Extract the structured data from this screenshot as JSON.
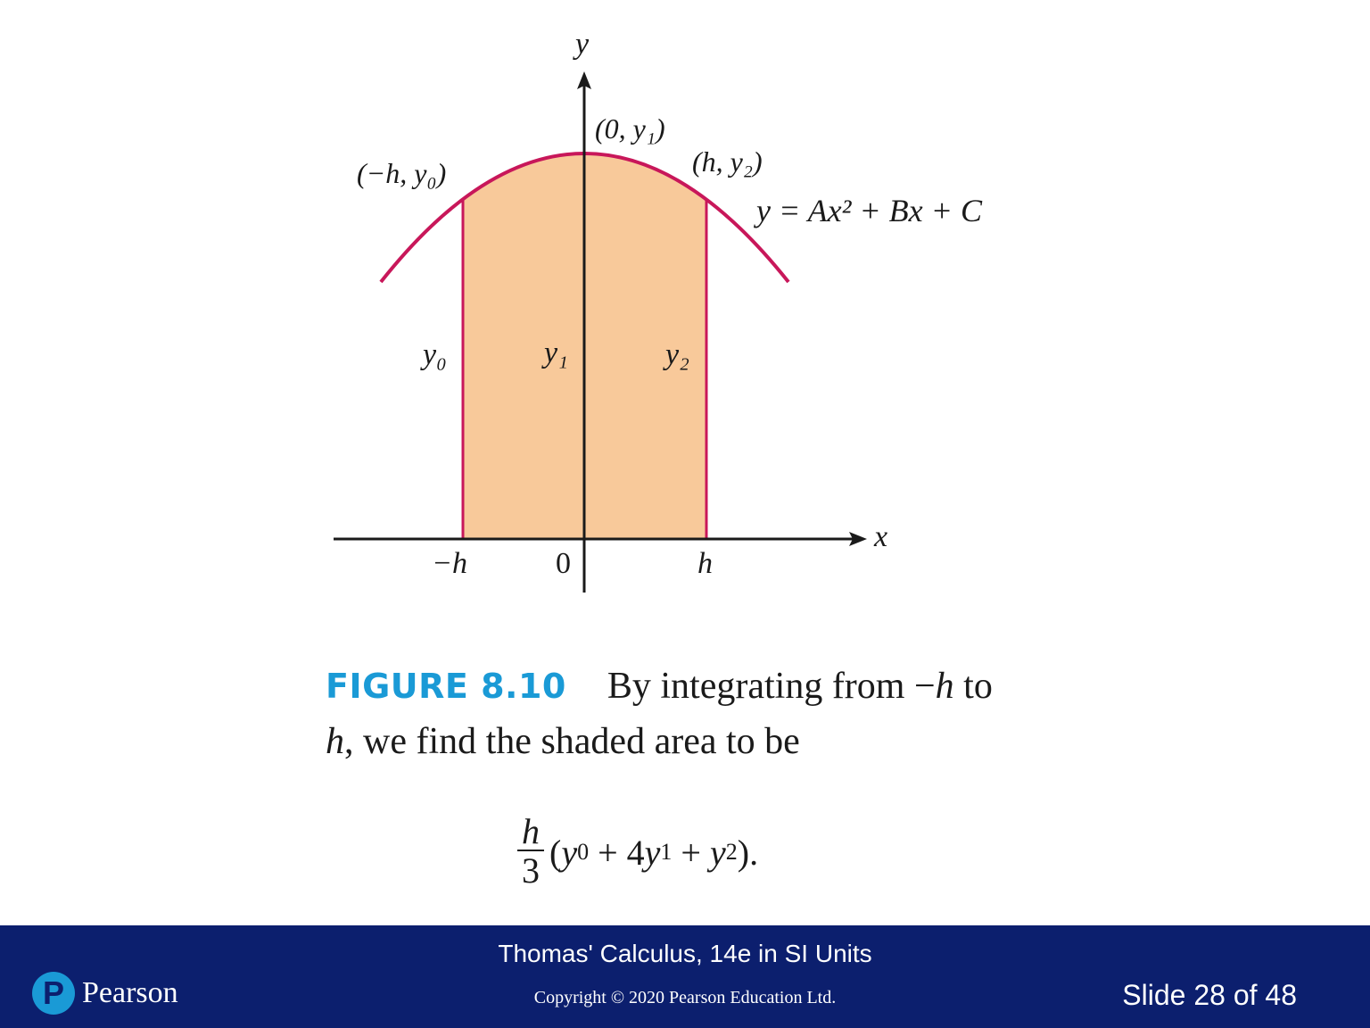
{
  "diagram": {
    "axis_x_label": "x",
    "axis_y_label": "y",
    "curve_equation": "y = Ax² + Bx + C",
    "point_labels": {
      "left": "(−h, y₀)",
      "top": "(0, y₁)",
      "right": "(h, y₂)"
    },
    "ordinate_labels": [
      "y₀",
      "y₁",
      "y₂"
    ],
    "tick_labels": [
      "−h",
      "0",
      "h"
    ],
    "colors": {
      "curve": "#c8175a",
      "shaded_area": "#f8c99a",
      "axes": "#1a1a1a"
    }
  },
  "caption": {
    "figure_label": "FIGURE 8.10",
    "text_part1": "By integrating from −",
    "text_h1": "h",
    "text_part2": " to ",
    "text_h2": "h",
    "text_part3": ", we find the shaded area to be"
  },
  "formula": {
    "numerator": "h",
    "denominator": "3",
    "expression_open": "(",
    "y0": "y",
    "y0_sub": "0",
    "plus1": " + 4",
    "y1": "y",
    "y1_sub": "1",
    "plus2": " + ",
    "y2": "y",
    "y2_sub": "2",
    "expression_close": ")."
  },
  "footer": {
    "book_title": "Thomas' Calculus, 14e in SI Units",
    "copyright": "Copyright © 2020 Pearson Education Ltd.",
    "slide_number": "Slide 28 of 48",
    "brand": "Pearson",
    "brand_initial": "P",
    "colors": {
      "background": "#0c1f6e",
      "logo_accent": "#1a9ad6"
    }
  }
}
